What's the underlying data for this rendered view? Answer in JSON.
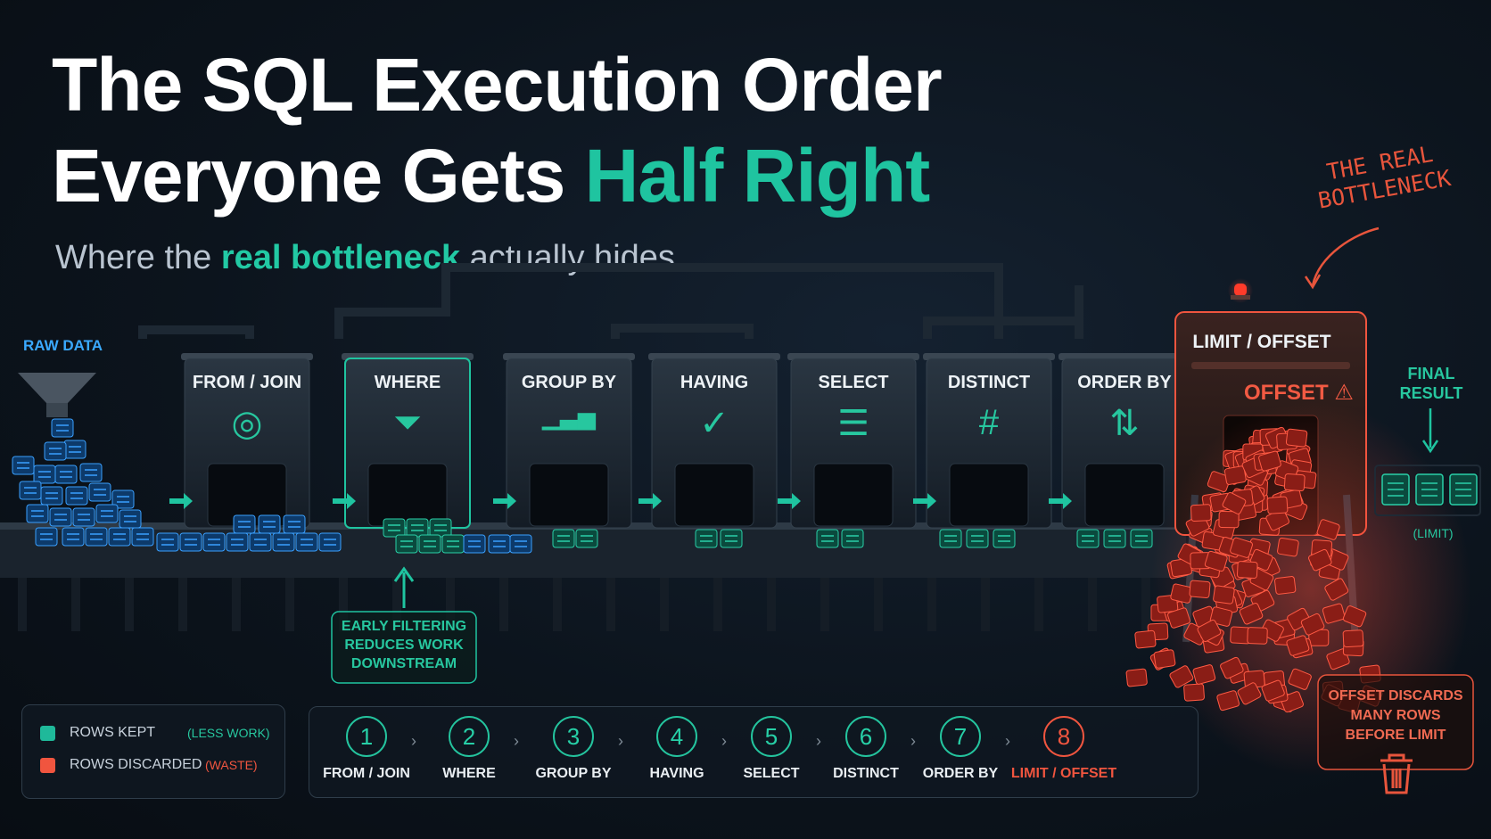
{
  "title_line1": "The SQL Execution Order",
  "title_line2_plain": "Everyone Gets",
  "title_line2_accent": "Half Right",
  "subtitle_pre": "Where the",
  "subtitle_accent": "real bottleneck",
  "subtitle_post": "actually hides",
  "raw_data_label": "RAW DATA",
  "stages": [
    {
      "label": "FROM / JOIN",
      "icon": "venn-circles-icon"
    },
    {
      "label": "WHERE",
      "icon": "funnel-icon"
    },
    {
      "label": "GROUP BY",
      "icon": "bar-chart-icon"
    },
    {
      "label": "HAVING",
      "icon": "check-circle-icon"
    },
    {
      "label": "SELECT",
      "icon": "list-icon"
    },
    {
      "label": "DISTINCT",
      "icon": "hash-icon"
    },
    {
      "label": "ORDER BY",
      "icon": "sort-arrows-icon"
    }
  ],
  "limit_stage": {
    "label": "LIMIT / OFFSET",
    "offset_label": "OFFSET",
    "warning_icon": "warning-icon"
  },
  "bottleneck_note": [
    "THE REAL",
    "BOTTLENECK"
  ],
  "final_result": {
    "line1": "FINAL",
    "line2": "RESULT",
    "limit_note": "(LIMIT)"
  },
  "early_filter_note": [
    "EARLY FILTERING",
    "REDUCES WORK",
    "DOWNSTREAM"
  ],
  "offset_note": [
    "OFFSET DISCARDS",
    "MANY ROWS",
    "BEFORE LIMIT"
  ],
  "legend": [
    {
      "label": "ROWS KEPT",
      "note": "(LESS WORK)",
      "color": "#1fb99a"
    },
    {
      "label": "ROWS DISCARDED",
      "note": "(WASTE)",
      "color": "#f0553f"
    }
  ],
  "steps": [
    {
      "num": "1",
      "label": "FROM / JOIN"
    },
    {
      "num": "2",
      "label": "WHERE"
    },
    {
      "num": "3",
      "label": "GROUP BY"
    },
    {
      "num": "4",
      "label": "HAVING"
    },
    {
      "num": "5",
      "label": "SELECT"
    },
    {
      "num": "6",
      "label": "DISTINCT"
    },
    {
      "num": "7",
      "label": "ORDER BY"
    },
    {
      "num": "8",
      "label": "LIMIT / OFFSET"
    }
  ],
  "step_arrow": "›",
  "colors": {
    "teal": "#1fc4a0",
    "blue": "#3aa0ff",
    "red": "#f0553f",
    "bg": "#0c141d"
  }
}
